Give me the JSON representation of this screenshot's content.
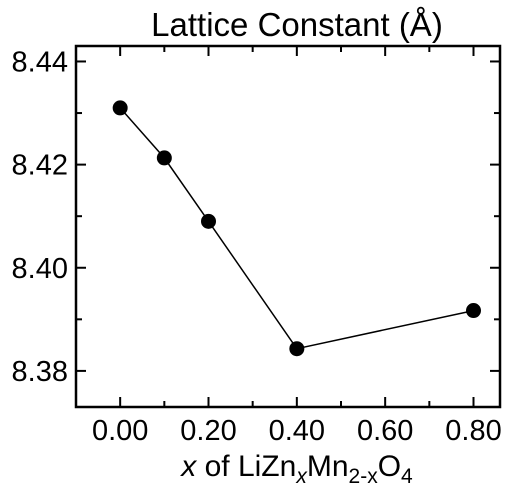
{
  "chart_data": {
    "type": "line",
    "title": "Lattice Constant (Å)",
    "xlabel": {
      "var": "x",
      "of": " of LiZn",
      "sub1": "x",
      "mid": "Mn",
      "sub2": "2-x",
      "end": "O",
      "sub3": "4"
    },
    "ylabel": "",
    "xlim": [
      -0.1,
      0.86
    ],
    "ylim": [
      8.373,
      8.443
    ],
    "x_ticks": [
      0.0,
      0.2,
      0.4,
      0.6,
      0.8
    ],
    "x_tick_labels": [
      "0.00",
      "0.20",
      "0.40",
      "0.60",
      "0.80"
    ],
    "x_minor_ticks": [
      0.1,
      0.3,
      0.5,
      0.7
    ],
    "y_ticks": [
      8.38,
      8.4,
      8.42,
      8.44
    ],
    "y_tick_labels": [
      "8.38",
      "8.40",
      "8.42",
      "8.44"
    ],
    "y_minor_ticks": [
      8.39,
      8.41,
      8.43
    ],
    "series": [
      {
        "x": [
          0.0,
          0.1,
          0.2,
          0.4,
          0.8
        ],
        "y": [
          8.431,
          8.4213,
          8.409,
          8.3843,
          8.3917
        ]
      }
    ],
    "marker": "filled-circle",
    "grid": false,
    "line_color": "#000000",
    "marker_color": "#000000"
  }
}
